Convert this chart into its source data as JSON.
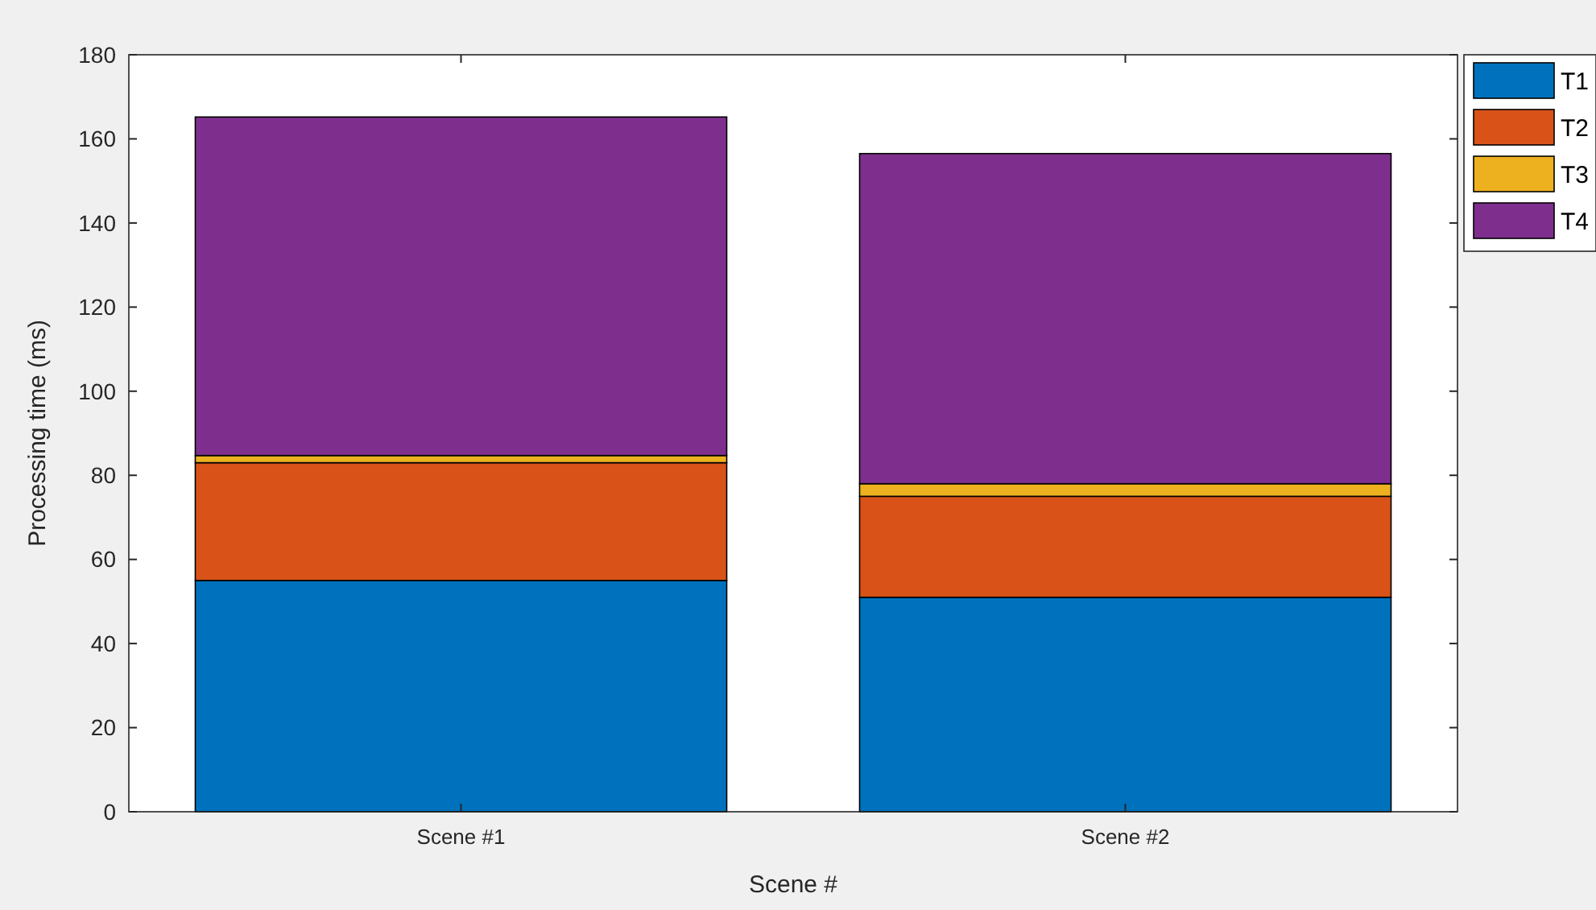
{
  "chart_data": {
    "type": "bar",
    "stacked": true,
    "xlabel": "Scene #",
    "ylabel": "Processing time (ms)",
    "categories": [
      "Scene #1",
      "Scene #2"
    ],
    "series": [
      {
        "name": "T1",
        "color": "#0072bd",
        "values": [
          55,
          51
        ]
      },
      {
        "name": "T2",
        "color": "#d95319",
        "values": [
          28,
          24
        ]
      },
      {
        "name": "T3",
        "color": "#edb120",
        "values": [
          1.7,
          3
        ]
      },
      {
        "name": "T4",
        "color": "#7e2f8e",
        "values": [
          80.5,
          78.5
        ]
      }
    ],
    "ylim": [
      0,
      180
    ],
    "yticks": [
      0,
      20,
      40,
      60,
      80,
      100,
      120,
      140,
      160,
      180
    ],
    "grid": false,
    "legend": "top right"
  }
}
